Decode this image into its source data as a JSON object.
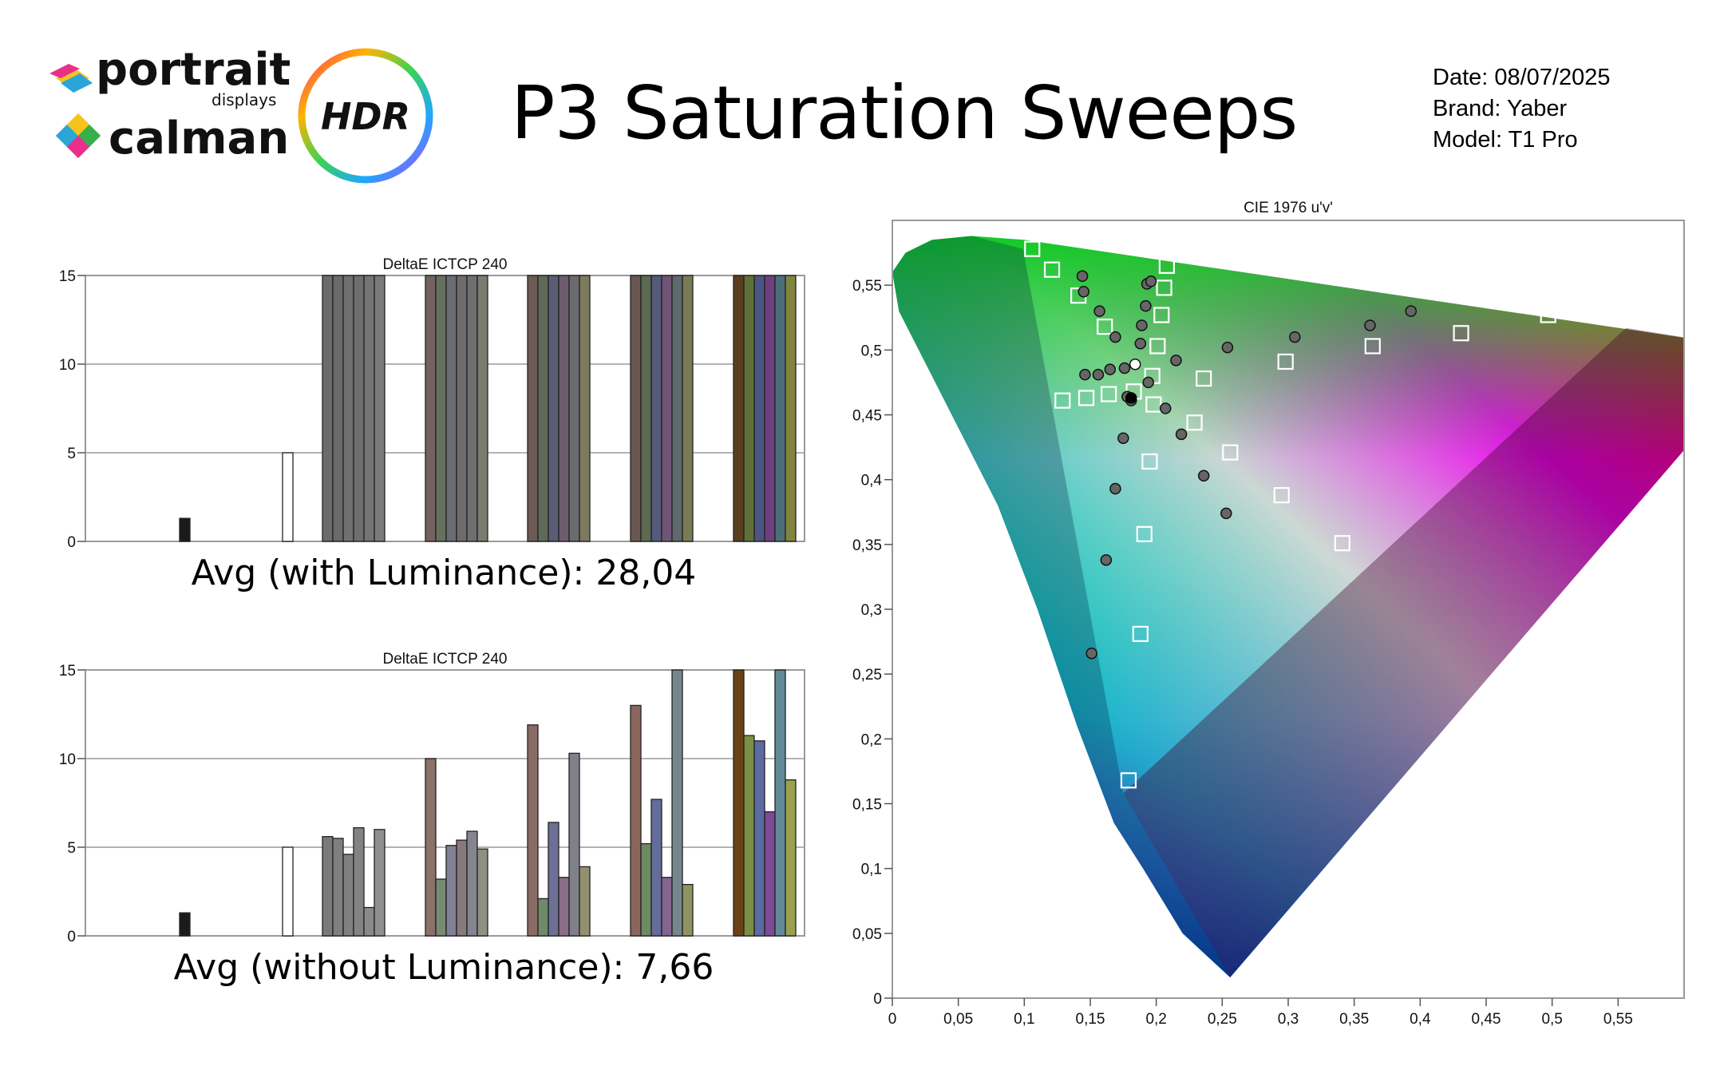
{
  "report": {
    "title": "P3 Saturation Sweeps",
    "date_line": "Date: 08/07/2025",
    "brand_line": "Brand: Yaber",
    "model_line": "Model: T1 Pro"
  },
  "logos": {
    "portrait_word": "portrait",
    "displays_word": "displays",
    "calman_word": "calman",
    "hdr_word": "HDR"
  },
  "icons": [
    "portrait-displays-logo-icon",
    "calman-logo-icon",
    "hdr-badge-icon"
  ],
  "summary": {
    "avg_with_luminance": "Avg (with Luminance): 28,04",
    "avg_without_luminance": "Avg (without Luminance): 7,66"
  },
  "chart_data": [
    {
      "type": "bar",
      "title": "DeltaE ICTCP 240",
      "ylim": [
        0,
        15
      ],
      "yticks": [
        "0",
        "5",
        "10",
        "15"
      ],
      "grid": true,
      "values": [
        1.3,
        5.0,
        15,
        15,
        15,
        15,
        15,
        15,
        15,
        15,
        15,
        15,
        15,
        15,
        15,
        15,
        15,
        15,
        15,
        15,
        15,
        15,
        15,
        15,
        15,
        15,
        15,
        15,
        15,
        15,
        15,
        15
      ],
      "colors": [
        "#1a1a1a",
        "#ffffff",
        "#6b6b6b",
        "#6a6a6a",
        "#707070",
        "#6e6e6e",
        "#747474",
        "#7a7a7a",
        "#73625f",
        "#66705f",
        "#6b6b72",
        "#706a6c",
        "#6f6f70",
        "#7b7c70",
        "#6d5a55",
        "#5e6a58",
        "#5a5d75",
        "#6d5c6b",
        "#6b6b6f",
        "#7d7a60",
        "#6a5752",
        "#5c6a52",
        "#55597a",
        "#6e5577",
        "#5f6a6e",
        "#7a7b55",
        "#5a3e20",
        "#5f7036",
        "#4a5584",
        "#6e3f7e",
        "#4c6e78",
        "#80843e"
      ]
    },
    {
      "type": "bar",
      "title": "DeltaE ICTCP 240",
      "ylim": [
        0,
        15
      ],
      "yticks": [
        "0",
        "5",
        "10",
        "15"
      ],
      "grid": true,
      "values": [
        1.3,
        5.0,
        5.6,
        5.5,
        4.6,
        6.1,
        1.6,
        6.0,
        10.0,
        3.2,
        5.1,
        5.4,
        5.9,
        4.9,
        11.9,
        2.1,
        6.4,
        3.3,
        10.3,
        3.9,
        13.0,
        5.2,
        7.7,
        3.3,
        15,
        2.9,
        15,
        11.3,
        11.0,
        7.0,
        15,
        8.8
      ],
      "colors": [
        "#1a1a1a",
        "#ffffff",
        "#7a7a7a",
        "#7f7f7f",
        "#808080",
        "#838383",
        "#8a8a8a",
        "#909090",
        "#8b716a",
        "#788a70",
        "#808096",
        "#87797c",
        "#858590",
        "#8f9082",
        "#8a6b66",
        "#6f8a6a",
        "#6e6f95",
        "#8a6d86",
        "#80808a",
        "#939070",
        "#8a655c",
        "#6e8a63",
        "#656c9a",
        "#84658f",
        "#75868e",
        "#90935f",
        "#6a4218",
        "#7b9044",
        "#5c6aa2",
        "#7e4a96",
        "#628a98",
        "#9aa050"
      ]
    },
    {
      "type": "scatter",
      "title": "CIE 1976 u'v'",
      "xlim": [
        0,
        0.6
      ],
      "ylim": [
        0,
        0.6
      ],
      "xticks": [
        "0",
        "0,05",
        "0,1",
        "0,15",
        "0,2",
        "0,25",
        "0,3",
        "0,35",
        "0,4",
        "0,45",
        "0,5",
        "0,55"
      ],
      "yticks": [
        "0",
        "0,05",
        "0,1",
        "0,15",
        "0,2",
        "0,25",
        "0,3",
        "0,35",
        "0,4",
        "0,45",
        "0,5",
        "0,55"
      ],
      "gamut_triangle": [
        [
          0.556,
          0.517
        ],
        [
          0.099,
          0.578
        ],
        [
          0.175,
          0.158
        ]
      ],
      "targets": [
        [
          0.106,
          0.578
        ],
        [
          0.121,
          0.562
        ],
        [
          0.141,
          0.542
        ],
        [
          0.161,
          0.518
        ],
        [
          0.129,
          0.461
        ],
        [
          0.147,
          0.463
        ],
        [
          0.164,
          0.466
        ],
        [
          0.183,
          0.468
        ],
        [
          0.198,
          0.458
        ],
        [
          0.208,
          0.565
        ],
        [
          0.206,
          0.548
        ],
        [
          0.204,
          0.527
        ],
        [
          0.201,
          0.503
        ],
        [
          0.197,
          0.48
        ],
        [
          0.236,
          0.478
        ],
        [
          0.229,
          0.444
        ],
        [
          0.256,
          0.421
        ],
        [
          0.298,
          0.491
        ],
        [
          0.364,
          0.503
        ],
        [
          0.431,
          0.513
        ],
        [
          0.497,
          0.527
        ],
        [
          0.195,
          0.414
        ],
        [
          0.295,
          0.388
        ],
        [
          0.341,
          0.351
        ],
        [
          0.191,
          0.358
        ],
        [
          0.188,
          0.281
        ],
        [
          0.179,
          0.168
        ]
      ],
      "measured": [
        [
          0.144,
          0.557
        ],
        [
          0.145,
          0.545
        ],
        [
          0.157,
          0.53
        ],
        [
          0.169,
          0.51
        ],
        [
          0.146,
          0.481
        ],
        [
          0.156,
          0.481
        ],
        [
          0.165,
          0.485
        ],
        [
          0.176,
          0.486
        ],
        [
          0.193,
          0.551
        ],
        [
          0.196,
          0.553
        ],
        [
          0.192,
          0.534
        ],
        [
          0.189,
          0.519
        ],
        [
          0.188,
          0.505
        ],
        [
          0.215,
          0.492
        ],
        [
          0.254,
          0.502
        ],
        [
          0.305,
          0.51
        ],
        [
          0.362,
          0.519
        ],
        [
          0.393,
          0.53
        ],
        [
          0.194,
          0.475
        ],
        [
          0.207,
          0.455
        ],
        [
          0.219,
          0.435
        ],
        [
          0.236,
          0.403
        ],
        [
          0.253,
          0.374
        ],
        [
          0.175,
          0.432
        ],
        [
          0.169,
          0.393
        ],
        [
          0.162,
          0.338
        ],
        [
          0.151,
          0.266
        ],
        [
          0.178,
          0.464
        ],
        [
          0.181,
          0.461
        ]
      ],
      "reference_points": [
        [
          0.184,
          0.489
        ],
        [
          0.181,
          0.463
        ]
      ]
    }
  ]
}
